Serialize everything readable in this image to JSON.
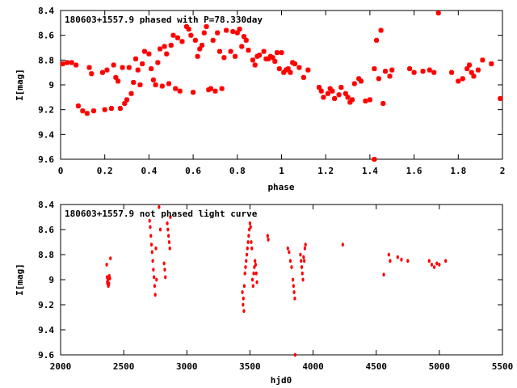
{
  "chart_data": [
    {
      "type": "scatter",
      "title": "180603+1557.9 phased with P=78.330day",
      "xlabel": "phase",
      "ylabel": "I[mag]",
      "xlim": [
        0,
        2
      ],
      "ylim": [
        9.6,
        8.4
      ],
      "xticks": [
        "0",
        "0.2",
        "0.4",
        "0.6",
        "0.8",
        "1",
        "1.2",
        "1.4",
        "1.6",
        "1.8",
        "2"
      ],
      "yticks": [
        "8.4",
        "8.6",
        "8.8",
        "9",
        "9.2",
        "9.4",
        "9.6"
      ],
      "marker_color": "#ff0000",
      "points": [
        [
          0.01,
          8.83
        ],
        [
          0.03,
          8.82
        ],
        [
          0.05,
          8.82
        ],
        [
          0.07,
          8.84
        ],
        [
          0.08,
          9.17
        ],
        [
          0.1,
          9.21
        ],
        [
          0.12,
          9.23
        ],
        [
          0.13,
          8.86
        ],
        [
          0.14,
          8.91
        ],
        [
          0.15,
          9.21
        ],
        [
          0.19,
          8.9
        ],
        [
          0.2,
          9.2
        ],
        [
          0.21,
          8.88
        ],
        [
          0.23,
          9.19
        ],
        [
          0.24,
          8.84
        ],
        [
          0.25,
          8.94
        ],
        [
          0.26,
          8.97
        ],
        [
          0.27,
          9.19
        ],
        [
          0.28,
          8.86
        ],
        [
          0.29,
          9.15
        ],
        [
          0.3,
          9.12
        ],
        [
          0.31,
          8.86
        ],
        [
          0.32,
          9.07
        ],
        [
          0.33,
          8.98
        ],
        [
          0.34,
          8.79
        ],
        [
          0.35,
          8.88
        ],
        [
          0.36,
          9.0
        ],
        [
          0.37,
          8.83
        ],
        [
          0.38,
          8.73
        ],
        [
          0.4,
          8.75
        ],
        [
          0.41,
          8.87
        ],
        [
          0.42,
          8.96
        ],
        [
          0.43,
          9.0
        ],
        [
          0.44,
          8.82
        ],
        [
          0.45,
          8.71
        ],
        [
          0.46,
          9.01
        ],
        [
          0.47,
          8.69
        ],
        [
          0.48,
          8.75
        ],
        [
          0.49,
          8.99
        ],
        [
          0.5,
          8.68
        ],
        [
          0.51,
          8.6
        ],
        [
          0.52,
          9.03
        ],
        [
          0.53,
          8.62
        ],
        [
          0.54,
          9.05
        ],
        [
          0.55,
          8.65
        ],
        [
          0.57,
          8.53
        ],
        [
          0.58,
          8.55
        ],
        [
          0.59,
          8.6
        ],
        [
          0.6,
          9.06
        ],
        [
          0.61,
          8.64
        ],
        [
          0.62,
          8.77
        ],
        [
          0.63,
          8.71
        ],
        [
          0.64,
          8.68
        ],
        [
          0.65,
          8.58
        ],
        [
          0.66,
          8.53
        ],
        [
          0.67,
          9.04
        ],
        [
          0.68,
          9.03
        ],
        [
          0.69,
          8.64
        ],
        [
          0.7,
          9.05
        ],
        [
          0.71,
          8.58
        ],
        [
          0.72,
          8.73
        ],
        [
          0.73,
          9.03
        ],
        [
          0.74,
          8.78
        ],
        [
          0.75,
          8.56
        ],
        [
          0.77,
          8.73
        ],
        [
          0.78,
          8.57
        ],
        [
          0.79,
          8.77
        ],
        [
          0.8,
          8.58
        ],
        [
          0.81,
          8.55
        ],
        [
          0.82,
          8.69
        ],
        [
          0.83,
          8.61
        ],
        [
          0.84,
          8.64
        ],
        [
          0.85,
          8.72
        ],
        [
          0.87,
          8.8
        ],
        [
          0.88,
          8.84
        ],
        [
          0.89,
          8.77
        ],
        [
          0.9,
          8.76
        ],
        [
          0.92,
          8.73
        ],
        [
          0.93,
          8.79
        ],
        [
          0.94,
          8.79
        ],
        [
          0.95,
          8.77
        ],
        [
          0.96,
          8.78
        ],
        [
          0.97,
          8.81
        ],
        [
          0.98,
          8.74
        ],
        [
          0.99,
          8.87
        ],
        [
          1.0,
          8.74
        ],
        [
          1.01,
          8.9
        ],
        [
          1.02,
          8.88
        ],
        [
          1.03,
          8.87
        ],
        [
          1.04,
          8.9
        ],
        [
          1.05,
          8.82
        ],
        [
          1.06,
          8.83
        ],
        [
          1.08,
          8.86
        ],
        [
          1.1,
          8.94
        ],
        [
          1.12,
          8.88
        ],
        [
          1.17,
          9.02
        ],
        [
          1.18,
          9.05
        ],
        [
          1.19,
          9.1
        ],
        [
          1.21,
          9.07
        ],
        [
          1.22,
          9.03
        ],
        [
          1.23,
          9.05
        ],
        [
          1.24,
          9.11
        ],
        [
          1.26,
          9.08
        ],
        [
          1.27,
          9.02
        ],
        [
          1.29,
          9.07
        ],
        [
          1.3,
          9.1
        ],
        [
          1.31,
          9.14
        ],
        [
          1.32,
          9.12
        ],
        [
          1.33,
          8.99
        ],
        [
          1.35,
          8.95
        ],
        [
          1.36,
          8.97
        ],
        [
          1.38,
          9.13
        ],
        [
          1.4,
          9.12
        ],
        [
          1.42,
          8.87
        ],
        [
          1.43,
          8.64
        ],
        [
          1.44,
          8.95
        ],
        [
          1.45,
          8.56
        ],
        [
          1.46,
          9.15
        ],
        [
          1.47,
          8.89
        ],
        [
          1.49,
          8.93
        ],
        [
          1.5,
          8.88
        ],
        [
          1.42,
          9.6
        ],
        [
          1.58,
          8.87
        ],
        [
          1.6,
          8.9
        ],
        [
          1.64,
          8.89
        ],
        [
          1.67,
          8.88
        ],
        [
          1.69,
          8.9
        ],
        [
          1.71,
          8.42
        ],
        [
          1.77,
          8.9
        ],
        [
          1.8,
          8.97
        ],
        [
          1.82,
          8.95
        ],
        [
          1.84,
          8.87
        ],
        [
          1.85,
          8.84
        ],
        [
          1.86,
          8.9
        ],
        [
          1.87,
          8.93
        ],
        [
          1.89,
          8.88
        ],
        [
          1.91,
          8.8
        ],
        [
          1.95,
          8.83
        ],
        [
          1.99,
          9.11
        ]
      ]
    },
    {
      "type": "scatter",
      "title": "180603+1557.9 not phased light curve",
      "xlabel": "hjd0",
      "ylabel": "I[mag]",
      "xlim": [
        2000,
        5500
      ],
      "ylim": [
        9.6,
        8.4
      ],
      "xticks": [
        "2000",
        "2500",
        "3000",
        "3500",
        "4000",
        "4500",
        "5000",
        "5500"
      ],
      "yticks": [
        "8.4",
        "8.6",
        "8.8",
        "9",
        "9.2",
        "9.4",
        "9.6"
      ],
      "marker_color": "#ff0000",
      "points": [
        [
          2365,
          8.88
        ],
        [
          2368,
          8.98
        ],
        [
          2370,
          9.02
        ],
        [
          2372,
          9.03
        ],
        [
          2375,
          9.0
        ],
        [
          2378,
          9.05
        ],
        [
          2380,
          9.04
        ],
        [
          2383,
          9.03
        ],
        [
          2386,
          8.97
        ],
        [
          2390,
          8.99
        ],
        [
          2395,
          8.83
        ],
        [
          2705,
          8.53
        ],
        [
          2710,
          8.58
        ],
        [
          2715,
          8.65
        ],
        [
          2720,
          8.72
        ],
        [
          2725,
          8.78
        ],
        [
          2730,
          8.85
        ],
        [
          2735,
          8.92
        ],
        [
          2740,
          8.98
        ],
        [
          2745,
          9.05
        ],
        [
          2750,
          9.12
        ],
        [
          2755,
          8.75
        ],
        [
          2760,
          9.0
        ],
        [
          2780,
          8.42
        ],
        [
          2790,
          8.6
        ],
        [
          2820,
          8.87
        ],
        [
          2825,
          8.92
        ],
        [
          2830,
          8.98
        ],
        [
          2845,
          8.55
        ],
        [
          2850,
          8.6
        ],
        [
          2855,
          8.65
        ],
        [
          2860,
          8.7
        ],
        [
          2865,
          8.75
        ],
        [
          2870,
          8.5
        ],
        [
          3440,
          9.1
        ],
        [
          3445,
          9.2
        ],
        [
          3448,
          9.15
        ],
        [
          3452,
          9.25
        ],
        [
          3455,
          9.05
        ],
        [
          3460,
          8.95
        ],
        [
          3465,
          8.9
        ],
        [
          3470,
          8.85
        ],
        [
          3475,
          8.8
        ],
        [
          3480,
          8.75
        ],
        [
          3485,
          8.7
        ],
        [
          3490,
          8.65
        ],
        [
          3495,
          8.6
        ],
        [
          3500,
          8.55
        ],
        [
          3505,
          8.58
        ],
        [
          3510,
          8.7
        ],
        [
          3515,
          8.75
        ],
        [
          3520,
          9.0
        ],
        [
          3525,
          9.05
        ],
        [
          3530,
          8.95
        ],
        [
          3535,
          8.9
        ],
        [
          3540,
          8.85
        ],
        [
          3545,
          8.88
        ],
        [
          3550,
          8.95
        ],
        [
          3555,
          9.02
        ],
        [
          3640,
          8.65
        ],
        [
          3645,
          8.68
        ],
        [
          3800,
          8.75
        ],
        [
          3810,
          8.78
        ],
        [
          3820,
          8.85
        ],
        [
          3830,
          8.9
        ],
        [
          3840,
          9.0
        ],
        [
          3845,
          9.05
        ],
        [
          3850,
          9.1
        ],
        [
          3855,
          9.15
        ],
        [
          3858,
          9.6
        ],
        [
          3900,
          8.8
        ],
        [
          3905,
          8.85
        ],
        [
          3910,
          8.9
        ],
        [
          3915,
          8.95
        ],
        [
          3920,
          9.0
        ],
        [
          3925,
          8.82
        ],
        [
          3930,
          8.85
        ],
        [
          3935,
          8.75
        ],
        [
          3940,
          8.72
        ],
        [
          4235,
          8.72
        ],
        [
          4560,
          8.96
        ],
        [
          4600,
          8.8
        ],
        [
          4610,
          8.85
        ],
        [
          4670,
          8.82
        ],
        [
          4700,
          8.84
        ],
        [
          4750,
          8.85
        ],
        [
          4920,
          8.85
        ],
        [
          4940,
          8.88
        ],
        [
          4960,
          8.9
        ],
        [
          4980,
          8.87
        ],
        [
          5000,
          8.88
        ],
        [
          5050,
          8.85
        ]
      ]
    }
  ]
}
